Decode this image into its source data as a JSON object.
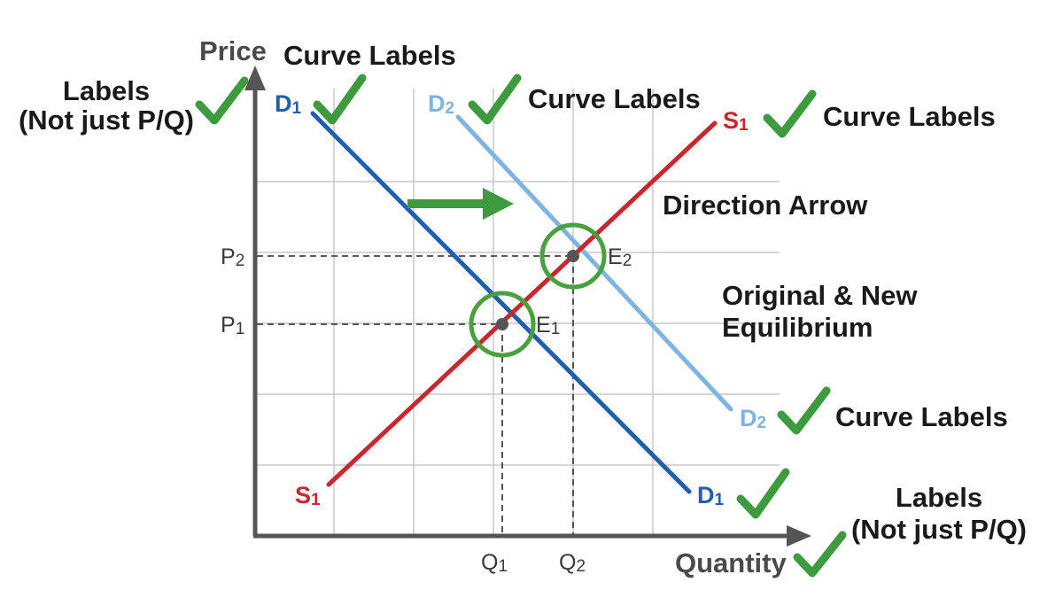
{
  "axes": {
    "x_title": "Quantity",
    "y_title": "Price",
    "x_ticks": [
      {
        "main": "Q",
        "sub": "1"
      },
      {
        "main": "Q",
        "sub": "2"
      }
    ],
    "y_ticks": [
      {
        "main": "P",
        "sub": "2"
      },
      {
        "main": "P",
        "sub": "1"
      }
    ]
  },
  "curves": {
    "d1": {
      "main": "D",
      "sub": "1",
      "color": "#1f5fae"
    },
    "d2": {
      "main": "D",
      "sub": "2",
      "color": "#7db4e0"
    },
    "s1": {
      "main": "S",
      "sub": "1",
      "color": "#c8272d"
    }
  },
  "equilibria": {
    "e1": {
      "main": "E",
      "sub": "1"
    },
    "e2": {
      "main": "E",
      "sub": "2"
    }
  },
  "annotations": {
    "curve_labels": "Curve Labels",
    "labels_line1": "Labels",
    "labels_line2": "(Not just P/Q)",
    "direction_arrow": "Direction Arrow",
    "equilibrium_line1": "Original & New",
    "equilibrium_line2": "Equilibrium"
  },
  "colors": {
    "check": "#3d9a3d",
    "circle": "#4a9f3f",
    "axis": "#555555",
    "grid": "#c8c8c8"
  },
  "icons": [
    "check-icon",
    "right-arrow-icon",
    "equilibrium-circle-icon"
  ]
}
